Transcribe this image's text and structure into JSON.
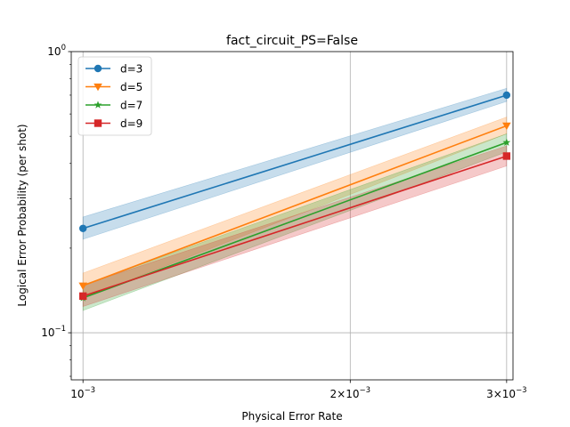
{
  "chart_data": {
    "type": "line",
    "title": "fact_circuit_PS=False",
    "xlabel": "Physical Error Rate",
    "ylabel": "Logical Error Probability (per shot)",
    "xscale": "log",
    "yscale": "log",
    "xlim": [
      0.00097,
      0.00305
    ],
    "ylim": [
      0.068,
      1.0
    ],
    "x": [
      0.001,
      0.003
    ],
    "x_ticks": [
      {
        "value": 0.001,
        "base": "10",
        "exp": "−3",
        "coef": ""
      },
      {
        "value": 0.002,
        "base": "10",
        "exp": "−3",
        "coef": "2×"
      },
      {
        "value": 0.003,
        "base": "10",
        "exp": "−3",
        "coef": "3×"
      }
    ],
    "y_ticks": [
      {
        "value": 1.0,
        "base": "10",
        "exp": "0"
      },
      {
        "value": 0.1,
        "base": "10",
        "exp": "−1"
      }
    ],
    "grid": true,
    "legend_position": "top-left",
    "series": [
      {
        "name": "d=3",
        "values": [
          0.235,
          0.7
        ],
        "lower": [
          0.215,
          0.665
        ],
        "upper": [
          0.258,
          0.74
        ],
        "color": "#1f77b4",
        "marker": "circle"
      },
      {
        "name": "d=5",
        "values": [
          0.147,
          0.545
        ],
        "lower": [
          0.133,
          0.51
        ],
        "upper": [
          0.163,
          0.585
        ],
        "color": "#ff7f0e",
        "marker": "triangle-down"
      },
      {
        "name": "d=7",
        "values": [
          0.133,
          0.475
        ],
        "lower": [
          0.12,
          0.44
        ],
        "upper": [
          0.148,
          0.51
        ],
        "color": "#2ca02c",
        "marker": "star"
      },
      {
        "name": "d=9",
        "values": [
          0.135,
          0.425
        ],
        "lower": [
          0.124,
          0.392
        ],
        "upper": [
          0.148,
          0.462
        ],
        "color": "#d62728",
        "marker": "square"
      }
    ]
  }
}
